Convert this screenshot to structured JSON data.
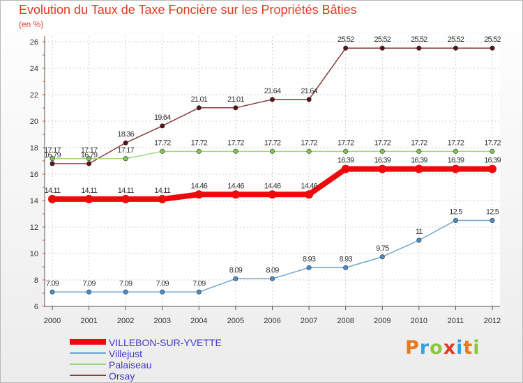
{
  "title": "Evolution du Taux de Taxe Foncière sur les Propriétés Bâties",
  "unit_label": "(en %)",
  "brand": "Proxiti",
  "colors": {
    "title": "#e03a20",
    "axis": "#444444",
    "legend_text": "#3f37c9",
    "logo_letters": [
      "#e87a1e",
      "#3aa0d8",
      "#8cc63f",
      "#e03a20",
      "#3aa0d8",
      "#e87a1e",
      "#8cc63f"
    ]
  },
  "chart_data": {
    "type": "line",
    "title": "Evolution du Taux de Taxe Foncière sur les Propriétés Bâties",
    "ylabel": "(en %)",
    "xlabel": "",
    "x": [
      "2000",
      "2001",
      "2002",
      "2003",
      "2004",
      "2005",
      "2006",
      "2007",
      "2008",
      "2009",
      "2010",
      "2011",
      "2012"
    ],
    "ylim": [
      6,
      26
    ],
    "yticks": [
      6,
      8,
      10,
      12,
      14,
      16,
      18,
      20,
      22,
      24,
      26
    ],
    "grid": true,
    "legend_position": "bottom-left",
    "series": [
      {
        "name": "VILLEBON-SUR-YVETTE",
        "color": "#ee0a0a",
        "marker": "#ee0a0a",
        "width": 8,
        "values": [
          14.11,
          14.11,
          14.11,
          14.11,
          14.46,
          14.46,
          14.46,
          14.46,
          16.39,
          16.39,
          16.39,
          16.39,
          16.39
        ],
        "labels": [
          "14.11",
          "14.11",
          "14.11",
          "14.11",
          "14.46",
          "14.46",
          "14.46",
          "14.46",
          "16.39",
          "16.39",
          "16.39",
          "16.39",
          "16.39"
        ]
      },
      {
        "name": "Villejust",
        "color": "#6fa3cf",
        "marker": "#4a8fcb",
        "width": 1.5,
        "values": [
          7.09,
          7.09,
          7.09,
          7.09,
          7.09,
          8.09,
          8.09,
          8.93,
          8.93,
          9.75,
          11,
          12.5,
          12.5
        ],
        "labels": [
          "7.09",
          "7.09",
          "7.09",
          "7.09",
          "7.09",
          "8.09",
          "8.09",
          "8.93",
          "8.93",
          "9.75",
          "11",
          "12.5",
          "12.5"
        ]
      },
      {
        "name": "Palaiseau",
        "color": "#9fd67e",
        "marker": "#7ccc4a",
        "width": 1.5,
        "values": [
          17.17,
          17.17,
          17.17,
          17.72,
          17.72,
          17.72,
          17.72,
          17.72,
          17.72,
          17.72,
          17.72,
          17.72,
          17.72
        ],
        "labels": [
          "17.17",
          "17.17",
          "17.17",
          "17.72",
          "17.72",
          "17.72",
          "17.72",
          "17.72",
          "17.72",
          "17.72",
          "17.72",
          "17.72",
          "17.72"
        ]
      },
      {
        "name": "Orsay",
        "color": "#8a3a3a",
        "marker": "#5a1414",
        "width": 1.5,
        "values": [
          16.79,
          16.79,
          18.36,
          19.64,
          21.01,
          21.01,
          21.64,
          21.64,
          25.52,
          25.52,
          25.52,
          25.52,
          25.52
        ],
        "labels": [
          "16.79",
          "16.79",
          "18.36",
          "19.64",
          "21.01",
          "21.01",
          "21.64",
          "21.64",
          "25.52",
          "25.52",
          "25.52",
          "25.52",
          "25.52"
        ]
      }
    ]
  }
}
